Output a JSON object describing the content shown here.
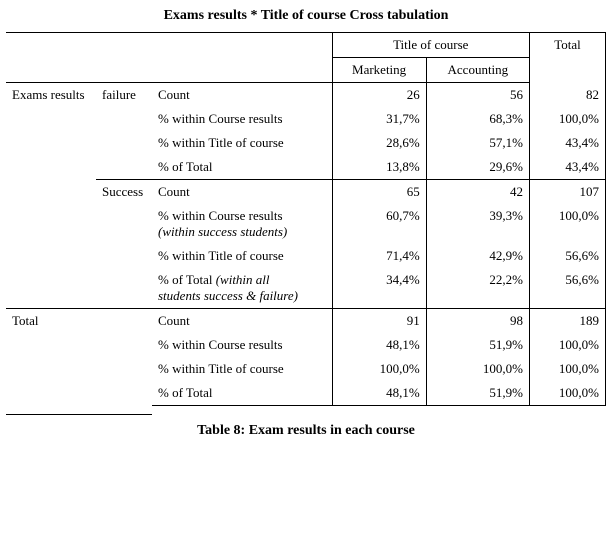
{
  "title": "Exams results * Title of course Cross tabulation",
  "caption": "Table 8: Exam results in  each course",
  "header": {
    "group": "Title of course",
    "col1": "Marketing",
    "col2": "Accounting",
    "total": "Total"
  },
  "rowvar": "Exams results",
  "groups": [
    {
      "name": "failure",
      "metrics": [
        {
          "label": "Count",
          "sub": "",
          "v1": "26",
          "v2": "56",
          "vt": "82"
        },
        {
          "label": "% within Course  results",
          "sub": "",
          "v1": "31,7%",
          "v2": "68,3%",
          "vt": "100,0%"
        },
        {
          "label": "% within Title of course",
          "sub": "",
          "v1": "28,6%",
          "v2": "57,1%",
          "vt": "43,4%"
        },
        {
          "label": "% of Total",
          "sub": "",
          "v1": "13,8%",
          "v2": "29,6%",
          "vt": "43,4%"
        }
      ]
    },
    {
      "name": "Success",
      "metrics": [
        {
          "label": "Count",
          "sub": "",
          "v1": "65",
          "v2": "42",
          "vt": "107"
        },
        {
          "label": "% within Course results",
          "sub": "(within success students)",
          "v1": "60,7%",
          "v2": "39,3%",
          "vt": "100,0%"
        },
        {
          "label": "% within Title of course",
          "sub": "",
          "v1": "71,4%",
          "v2": "42,9%",
          "vt": "56,6%"
        },
        {
          "label": "% of Total ",
          "label2": "(within all",
          "sub": "students success & failure)",
          "v1": "34,4%",
          "v2": "22,2%",
          "vt": "56,6%"
        }
      ]
    }
  ],
  "total": {
    "name": "Total",
    "metrics": [
      {
        "label": "Count",
        "v1": "91",
        "v2": "98",
        "vt": "189"
      },
      {
        "label": "% within Course results",
        "v1": "48,1%",
        "v2": "51,9%",
        "vt": "100,0%"
      },
      {
        "label": "% within Title of course",
        "v1": "100,0%",
        "v2": "100,0%",
        "vt": "100,0%"
      },
      {
        "label": "% of Total",
        "v1": "48,1%",
        "v2": "51,9%",
        "vt": "100,0%"
      }
    ]
  }
}
